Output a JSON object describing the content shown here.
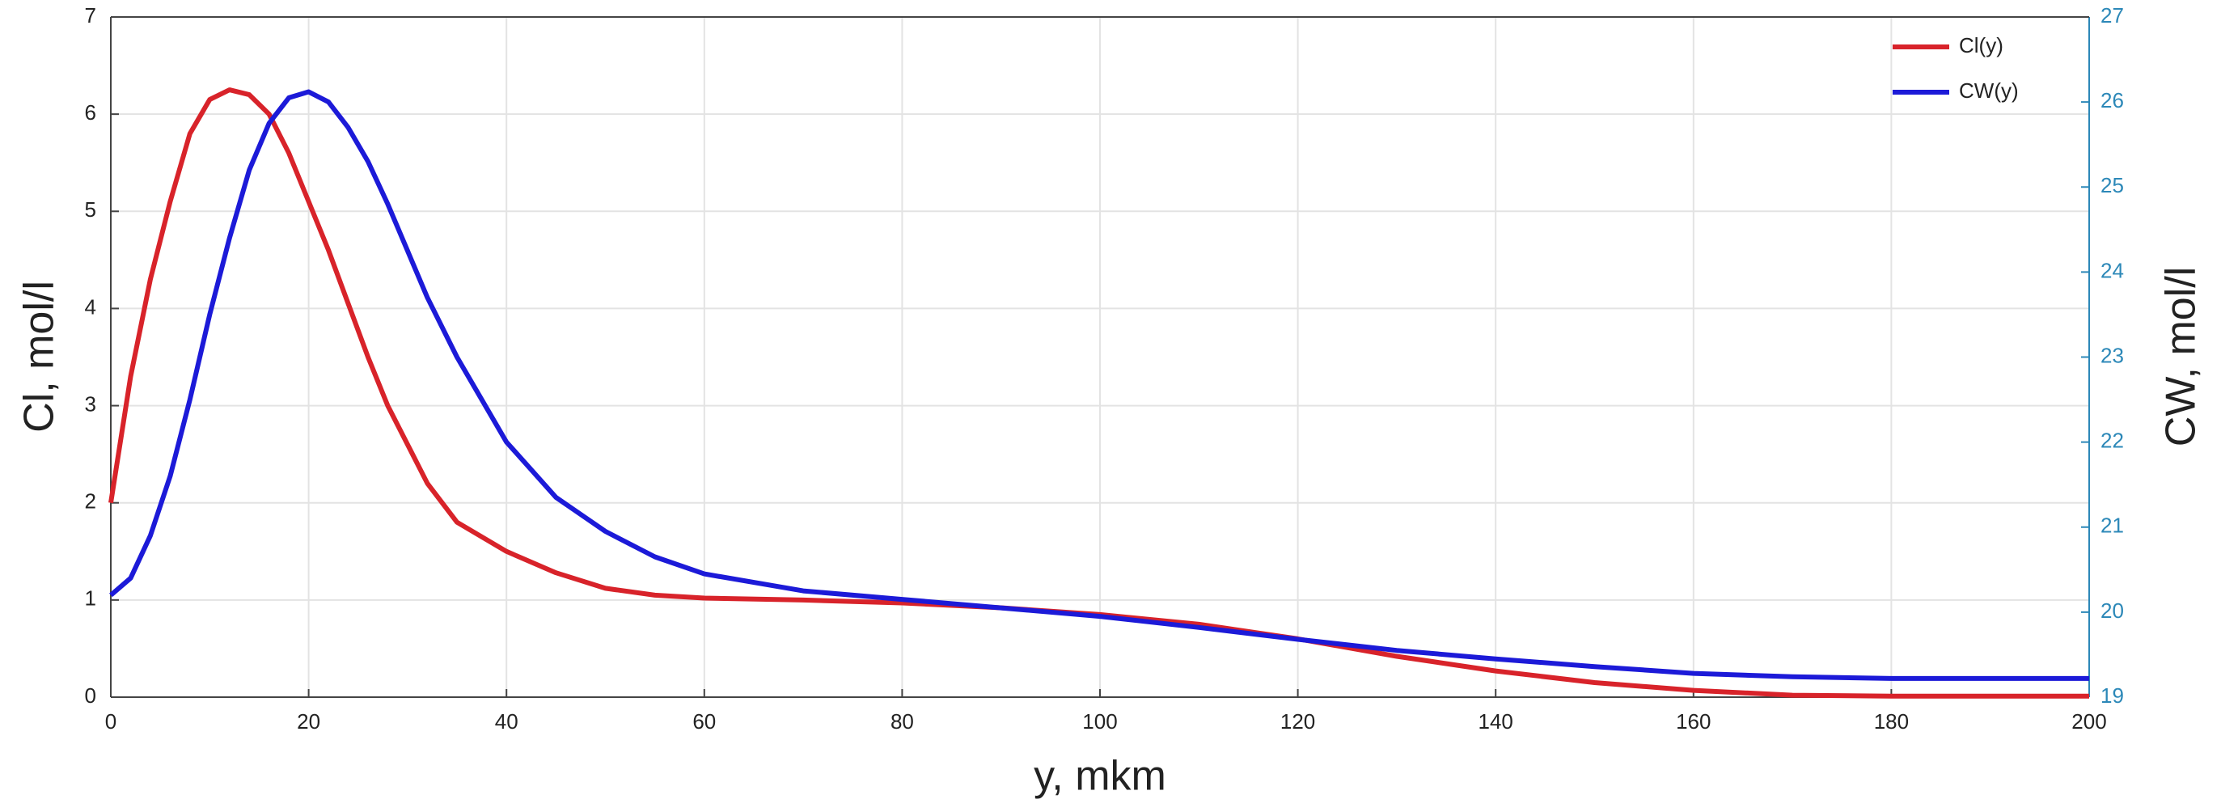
{
  "chart_data": {
    "type": "line",
    "xlabel": "y, mkm",
    "ylabel": "Cl, mol/l",
    "y2label": "CW, mol/l",
    "x": [
      0,
      2,
      4,
      6,
      8,
      10,
      12,
      14,
      16,
      18,
      20,
      22,
      24,
      26,
      28,
      30,
      32,
      35,
      40,
      45,
      50,
      55,
      60,
      70,
      80,
      90,
      100,
      110,
      120,
      130,
      140,
      150,
      160,
      170,
      180,
      190,
      200
    ],
    "series": [
      {
        "name": "Cl(y)",
        "color": "#d8232a",
        "axis": "y",
        "values": [
          2.0,
          3.3,
          4.3,
          5.1,
          5.8,
          6.15,
          6.25,
          6.2,
          6.0,
          5.6,
          5.1,
          4.6,
          4.05,
          3.5,
          3.0,
          2.6,
          2.2,
          1.8,
          1.5,
          1.28,
          1.12,
          1.05,
          1.02,
          1.0,
          0.97,
          0.92,
          0.85,
          0.75,
          0.6,
          0.42,
          0.27,
          0.15,
          0.07,
          0.02,
          0.01,
          0.01,
          0.01
        ]
      },
      {
        "name": "CW(y)",
        "color": "#1c1ad8",
        "axis": "y2",
        "values": [
          20.2,
          20.4,
          20.9,
          21.6,
          22.5,
          23.5,
          24.4,
          25.2,
          25.75,
          26.05,
          26.12,
          26.0,
          25.7,
          25.3,
          24.8,
          24.25,
          23.7,
          23.0,
          22.0,
          21.35,
          20.95,
          20.65,
          20.45,
          20.25,
          20.15,
          20.05,
          19.95,
          19.82,
          19.68,
          19.55,
          19.45,
          19.36,
          19.28,
          19.24,
          19.22,
          19.22,
          19.22
        ]
      }
    ],
    "xlim": [
      0,
      200
    ],
    "xticks": [
      0,
      20,
      40,
      60,
      80,
      100,
      120,
      140,
      160,
      180,
      200
    ],
    "ylim": [
      0,
      7
    ],
    "yticks": [
      0,
      1,
      2,
      3,
      4,
      5,
      6,
      7
    ],
    "y2lim": [
      19,
      27
    ],
    "y2ticks": [
      19,
      20,
      21,
      22,
      23,
      24,
      25,
      26,
      27
    ],
    "y2color": "#2c88b8",
    "grid": true,
    "legend": "upper right"
  }
}
